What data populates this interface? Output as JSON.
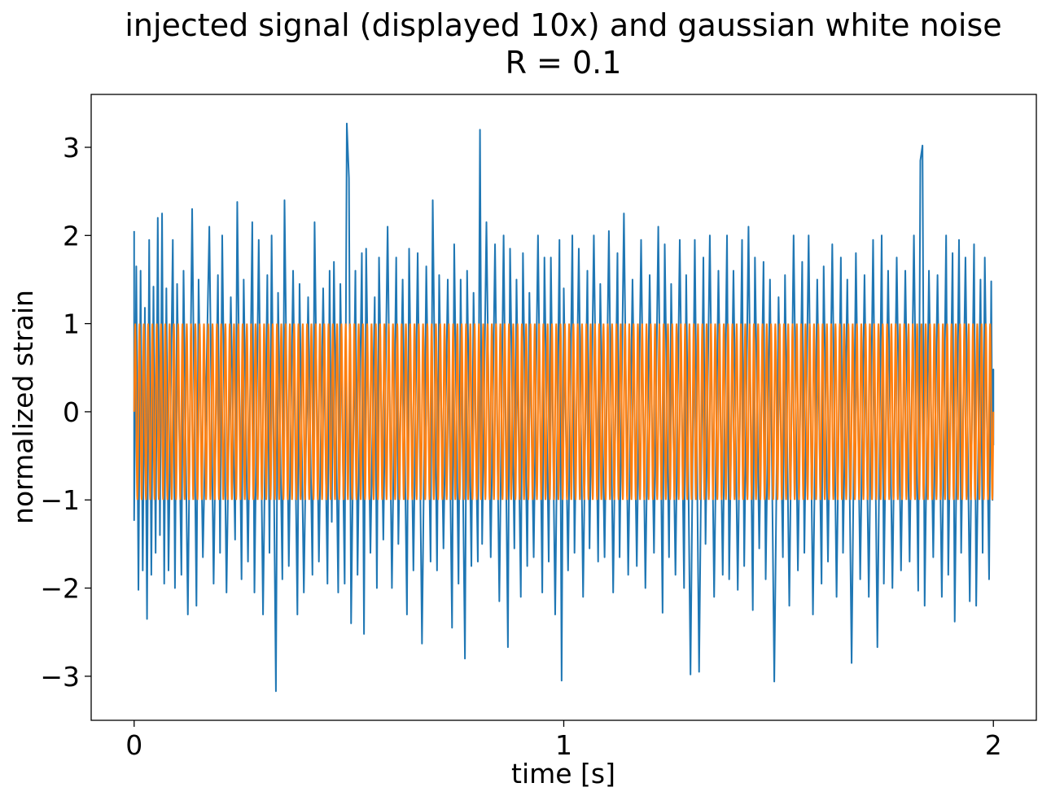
{
  "chart_data": {
    "type": "line",
    "title": "injected signal (displayed 10x) and gaussian white noise",
    "subtitle": "R = 0.1",
    "xlabel": "time [s]",
    "ylabel": "normalized strain",
    "xlim": [
      -0.1,
      2.1
    ],
    "ylim": [
      -3.5,
      3.6
    ],
    "xticks": [
      0,
      1,
      2
    ],
    "xtick_labels": [
      "0",
      "1",
      "2"
    ],
    "yticks": [
      3,
      2,
      1,
      0,
      -1,
      -2,
      -3
    ],
    "ytick_labels": [
      "3",
      "2",
      "1",
      "0",
      "−1",
      "−2",
      "−3"
    ],
    "grid": false,
    "legend": "none",
    "series": [
      {
        "color": "#1f77b4",
        "points": [
          [
            0.0,
            2.05
          ],
          [
            0.0,
            -1.23
          ],
          [
            0.005,
            1.65
          ],
          [
            0.01,
            -2.02
          ],
          [
            0.015,
            1.6
          ],
          [
            0.02,
            -1.8
          ],
          [
            0.025,
            1.18
          ],
          [
            0.03,
            -2.35
          ],
          [
            0.035,
            1.95
          ],
          [
            0.04,
            -1.85
          ],
          [
            0.045,
            1.42
          ],
          [
            0.05,
            -1.6
          ],
          [
            0.055,
            2.2
          ],
          [
            0.06,
            -1.4
          ],
          [
            0.065,
            2.25
          ],
          [
            0.07,
            -1.95
          ],
          [
            0.075,
            1.4
          ],
          [
            0.08,
            -1.8
          ],
          [
            0.09,
            1.95
          ],
          [
            0.095,
            -2.0
          ],
          [
            0.1,
            1.45
          ],
          [
            0.11,
            -1.85
          ],
          [
            0.115,
            1.6
          ],
          [
            0.125,
            -2.3
          ],
          [
            0.135,
            2.3
          ],
          [
            0.145,
            -2.2
          ],
          [
            0.15,
            1.5
          ],
          [
            0.16,
            -1.65
          ],
          [
            0.175,
            2.1
          ],
          [
            0.185,
            -1.95
          ],
          [
            0.195,
            1.55
          ],
          [
            0.2,
            -1.6
          ],
          [
            0.205,
            2.0
          ],
          [
            0.215,
            -2.05
          ],
          [
            0.225,
            1.3
          ],
          [
            0.235,
            -1.45
          ],
          [
            0.24,
            2.38
          ],
          [
            0.25,
            -1.9
          ],
          [
            0.255,
            1.5
          ],
          [
            0.265,
            -1.7
          ],
          [
            0.275,
            2.15
          ],
          [
            0.28,
            -2.05
          ],
          [
            0.29,
            1.95
          ],
          [
            0.3,
            -2.3
          ],
          [
            0.31,
            1.55
          ],
          [
            0.315,
            -1.6
          ],
          [
            0.32,
            2.0
          ],
          [
            0.33,
            -3.17
          ],
          [
            0.335,
            1.35
          ],
          [
            0.345,
            -1.9
          ],
          [
            0.35,
            2.4
          ],
          [
            0.36,
            -1.75
          ],
          [
            0.37,
            1.6
          ],
          [
            0.38,
            -2.3
          ],
          [
            0.385,
            1.45
          ],
          [
            0.395,
            -2.05
          ],
          [
            0.405,
            1.3
          ],
          [
            0.415,
            -1.85
          ],
          [
            0.42,
            2.15
          ],
          [
            0.43,
            -1.7
          ],
          [
            0.44,
            1.4
          ],
          [
            0.45,
            -1.95
          ],
          [
            0.455,
            1.6
          ],
          [
            0.46,
            -1.25
          ],
          [
            0.465,
            1.7
          ],
          [
            0.475,
            -2.05
          ],
          [
            0.48,
            1.45
          ],
          [
            0.49,
            -1.95
          ],
          [
            0.495,
            3.27
          ],
          [
            0.5,
            2.65
          ],
          [
            0.505,
            -2.4
          ],
          [
            0.515,
            1.6
          ],
          [
            0.52,
            -1.85
          ],
          [
            0.53,
            1.8
          ],
          [
            0.535,
            -2.52
          ],
          [
            0.54,
            1.85
          ],
          [
            0.55,
            -1.6
          ],
          [
            0.56,
            1.3
          ],
          [
            0.565,
            -2.0
          ],
          [
            0.57,
            1.75
          ],
          [
            0.58,
            -1.45
          ],
          [
            0.59,
            2.1
          ],
          [
            0.6,
            -2.0
          ],
          [
            0.61,
            1.75
          ],
          [
            0.615,
            -1.5
          ],
          [
            0.625,
            1.5
          ],
          [
            0.635,
            -2.3
          ],
          [
            0.64,
            1.85
          ],
          [
            0.65,
            -1.8
          ],
          [
            0.66,
            1.8
          ],
          [
            0.67,
            -2.63
          ],
          [
            0.68,
            1.65
          ],
          [
            0.69,
            -1.7
          ],
          [
            0.695,
            2.4
          ],
          [
            0.705,
            -1.8
          ],
          [
            0.71,
            1.55
          ],
          [
            0.72,
            -1.55
          ],
          [
            0.73,
            1.5
          ],
          [
            0.74,
            -2.45
          ],
          [
            0.745,
            1.9
          ],
          [
            0.755,
            -1.95
          ],
          [
            0.76,
            1.5
          ],
          [
            0.77,
            -2.8
          ],
          [
            0.775,
            1.6
          ],
          [
            0.785,
            -1.75
          ],
          [
            0.79,
            1.35
          ],
          [
            0.8,
            -1.7
          ],
          [
            0.805,
            3.2
          ],
          [
            0.81,
            -1.5
          ],
          [
            0.82,
            2.15
          ],
          [
            0.83,
            -1.65
          ],
          [
            0.84,
            1.9
          ],
          [
            0.85,
            -2.15
          ],
          [
            0.86,
            2.0
          ],
          [
            0.87,
            -2.67
          ],
          [
            0.875,
            1.85
          ],
          [
            0.885,
            -1.55
          ],
          [
            0.89,
            1.5
          ],
          [
            0.9,
            -2.1
          ],
          [
            0.905,
            1.8
          ],
          [
            0.915,
            -1.75
          ],
          [
            0.92,
            1.35
          ],
          [
            0.93,
            -1.65
          ],
          [
            0.94,
            2.0
          ],
          [
            0.95,
            -2.05
          ],
          [
            0.955,
            1.75
          ],
          [
            0.965,
            -1.7
          ],
          [
            0.97,
            1.75
          ],
          [
            0.98,
            -2.3
          ],
          [
            0.99,
            1.95
          ],
          [
            0.995,
            -3.05
          ],
          [
            1.0,
            1.4
          ],
          [
            1.01,
            -1.8
          ],
          [
            1.02,
            2.0
          ],
          [
            1.025,
            -1.6
          ],
          [
            1.035,
            1.85
          ],
          [
            1.045,
            -2.1
          ],
          [
            1.055,
            1.6
          ],
          [
            1.06,
            -1.55
          ],
          [
            1.07,
            2.0
          ],
          [
            1.08,
            -1.7
          ],
          [
            1.085,
            1.45
          ],
          [
            1.095,
            -1.65
          ],
          [
            1.105,
            2.05
          ],
          [
            1.115,
            -2.05
          ],
          [
            1.125,
            1.8
          ],
          [
            1.13,
            -1.65
          ],
          [
            1.14,
            2.25
          ],
          [
            1.15,
            -1.85
          ],
          [
            1.16,
            1.5
          ],
          [
            1.17,
            -1.75
          ],
          [
            1.18,
            1.95
          ],
          [
            1.19,
            -2.0
          ],
          [
            1.2,
            1.55
          ],
          [
            1.21,
            -1.6
          ],
          [
            1.22,
            2.1
          ],
          [
            1.23,
            -2.28
          ],
          [
            1.235,
            1.9
          ],
          [
            1.245,
            -1.65
          ],
          [
            1.25,
            1.45
          ],
          [
            1.26,
            -1.85
          ],
          [
            1.27,
            1.95
          ],
          [
            1.28,
            -2.0
          ],
          [
            1.285,
            1.55
          ],
          [
            1.295,
            -2.98
          ],
          [
            1.305,
            1.95
          ],
          [
            1.315,
            -2.95
          ],
          [
            1.325,
            1.75
          ],
          [
            1.33,
            -1.5
          ],
          [
            1.34,
            2.0
          ],
          [
            1.35,
            -2.1
          ],
          [
            1.36,
            1.6
          ],
          [
            1.37,
            -1.85
          ],
          [
            1.38,
            2.0
          ],
          [
            1.385,
            -1.9
          ],
          [
            1.395,
            1.6
          ],
          [
            1.405,
            -2.02
          ],
          [
            1.415,
            1.95
          ],
          [
            1.42,
            -1.75
          ],
          [
            1.43,
            2.1
          ],
          [
            1.44,
            -2.25
          ],
          [
            1.445,
            1.75
          ],
          [
            1.455,
            -1.55
          ],
          [
            1.465,
            1.7
          ],
          [
            1.47,
            -1.9
          ],
          [
            1.48,
            1.5
          ],
          [
            1.49,
            -3.06
          ],
          [
            1.5,
            1.3
          ],
          [
            1.51,
            -1.65
          ],
          [
            1.515,
            1.55
          ],
          [
            1.525,
            -2.2
          ],
          [
            1.535,
            2.0
          ],
          [
            1.545,
            -1.8
          ],
          [
            1.555,
            1.7
          ],
          [
            1.56,
            -1.6
          ],
          [
            1.57,
            2.0
          ],
          [
            1.58,
            -2.3
          ],
          [
            1.59,
            1.5
          ],
          [
            1.6,
            -1.95
          ],
          [
            1.605,
            1.65
          ],
          [
            1.615,
            -1.7
          ],
          [
            1.625,
            1.9
          ],
          [
            1.635,
            -2.1
          ],
          [
            1.645,
            1.75
          ],
          [
            1.65,
            -1.6
          ],
          [
            1.66,
            1.5
          ],
          [
            1.67,
            -2.85
          ],
          [
            1.68,
            1.8
          ],
          [
            1.69,
            -1.9
          ],
          [
            1.7,
            1.55
          ],
          [
            1.71,
            -2.1
          ],
          [
            1.72,
            1.95
          ],
          [
            1.73,
            -2.67
          ],
          [
            1.74,
            2.0
          ],
          [
            1.745,
            -1.95
          ],
          [
            1.755,
            1.6
          ],
          [
            1.765,
            -2.0
          ],
          [
            1.775,
            1.75
          ],
          [
            1.785,
            -1.8
          ],
          [
            1.795,
            1.6
          ],
          [
            1.805,
            -1.7
          ],
          [
            1.815,
            2.0
          ],
          [
            1.825,
            -2.03
          ],
          [
            1.83,
            2.85
          ],
          [
            1.835,
            3.02
          ],
          [
            1.84,
            -2.2
          ],
          [
            1.85,
            1.6
          ],
          [
            1.86,
            -1.65
          ],
          [
            1.87,
            1.55
          ],
          [
            1.88,
            -2.1
          ],
          [
            1.89,
            2.0
          ],
          [
            1.895,
            -1.85
          ],
          [
            1.905,
            1.8
          ],
          [
            1.91,
            -2.38
          ],
          [
            1.92,
            1.95
          ],
          [
            1.925,
            -1.6
          ],
          [
            1.935,
            1.75
          ],
          [
            1.945,
            -2.15
          ],
          [
            1.955,
            1.9
          ],
          [
            1.96,
            -2.2
          ],
          [
            1.97,
            1.5
          ],
          [
            1.975,
            -1.6
          ],
          [
            1.98,
            1.75
          ],
          [
            1.99,
            -1.9
          ],
          [
            1.995,
            1.48
          ],
          [
            1.998,
            -1.0
          ],
          [
            2.0,
            0.48
          ],
          [
            2.0,
            -0.38
          ]
        ]
      },
      {
        "color": "#ff7f0e",
        "amplitude": 1.0,
        "frequency_hz": 100,
        "x_range": [
          0,
          2
        ]
      }
    ]
  }
}
